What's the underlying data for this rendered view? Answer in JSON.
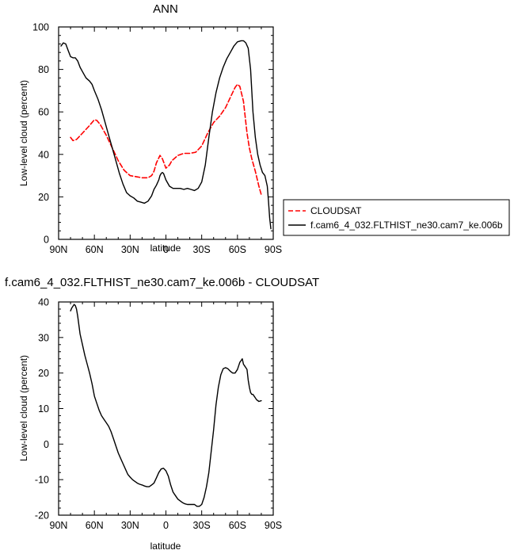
{
  "chart_data": [
    {
      "type": "line",
      "title": "ANN",
      "xlabel": "latitude",
      "ylabel": "Low-level cloud (percent)",
      "xlim": [
        90,
        -90
      ],
      "ylim": [
        0,
        100
      ],
      "x_ticks": [
        90,
        60,
        30,
        0,
        -30,
        -60,
        -90
      ],
      "x_tick_labels": [
        "90N",
        "60N",
        "30N",
        "0",
        "30S",
        "60S",
        "90S"
      ],
      "y_ticks": [
        0,
        20,
        40,
        60,
        80,
        100
      ],
      "y_tick_labels": [
        "0",
        "20",
        "40",
        "60",
        "80",
        "100"
      ],
      "legend_position": "right, outside plot",
      "series": [
        {
          "name": "CLOUDSAT",
          "color": "#ff0000",
          "dash": "dashed",
          "x": [
            80,
            78,
            75,
            70,
            65,
            60,
            58,
            55,
            50,
            45,
            40,
            35,
            30,
            25,
            20,
            15,
            12,
            10,
            8,
            5,
            3,
            0,
            -3,
            -5,
            -10,
            -15,
            -20,
            -25,
            -30,
            -35,
            -40,
            -45,
            -50,
            -55,
            -58,
            -60,
            -62,
            -65,
            -68,
            -70,
            -72,
            -75,
            -78,
            -80
          ],
          "y": [
            48,
            46.5,
            47,
            50,
            53,
            56.3,
            56,
            54,
            49,
            43,
            37,
            32.5,
            30,
            29.5,
            29,
            29,
            30,
            32,
            36,
            39.5,
            38,
            33.5,
            35,
            37,
            39.5,
            40.5,
            40.5,
            41,
            44,
            50,
            55,
            58,
            62,
            68,
            71.5,
            73,
            72,
            65,
            50,
            43,
            38,
            32,
            25,
            21
          ]
        },
        {
          "name": "f.cam6_4_032.FLTHIST_ne30.cam7_ke.006b",
          "color": "#000000",
          "dash": "solid",
          "x": [
            88,
            86,
            84,
            82,
            80,
            78,
            76,
            74,
            72,
            70,
            67,
            64,
            62,
            60,
            57,
            54,
            51,
            48,
            45,
            42,
            39,
            36,
            33,
            30,
            27,
            24,
            21,
            18,
            15,
            12,
            10,
            8,
            6,
            5,
            4,
            3,
            2,
            0,
            -3,
            -6,
            -9,
            -12,
            -15,
            -18,
            -21,
            -24,
            -27,
            -30,
            -33,
            -36,
            -39,
            -42,
            -45,
            -48,
            -51,
            -54,
            -57,
            -60,
            -63,
            -65,
            -67,
            -69,
            -71,
            -73,
            -75,
            -77,
            -79,
            -81,
            -83,
            -85,
            -86,
            -87,
            -88
          ],
          "y": [
            91,
            92.5,
            92,
            89,
            86,
            85.5,
            85.5,
            84,
            81,
            79,
            76,
            74.5,
            73,
            70,
            66,
            61,
            55,
            49,
            43,
            37,
            31,
            26,
            22,
            20.5,
            19.5,
            18,
            17.5,
            17,
            18,
            20.5,
            23.5,
            25.5,
            28,
            30,
            31,
            31.5,
            31,
            28,
            25,
            24,
            24,
            24,
            23.5,
            24,
            23.5,
            23,
            24,
            27,
            35,
            48,
            60,
            69,
            76,
            81,
            85,
            88,
            91,
            93,
            93.5,
            93.5,
            92.5,
            90,
            80,
            60,
            48,
            40,
            35,
            31.5,
            30,
            25,
            18,
            10,
            5
          ]
        }
      ]
    },
    {
      "type": "line",
      "title": "f.cam6_4_032.FLTHIST_ne30.cam7_ke.006b - CLOUDSAT",
      "xlabel": "latitude",
      "ylabel": "Low-level cloud (percent)",
      "xlim": [
        90,
        -90
      ],
      "ylim": [
        -20,
        40
      ],
      "x_ticks": [
        90,
        60,
        30,
        0,
        -30,
        -60,
        -90
      ],
      "x_tick_labels": [
        "90N",
        "60N",
        "30N",
        "0",
        "30S",
        "60S",
        "90S"
      ],
      "y_ticks": [
        -20,
        -10,
        0,
        10,
        20,
        30,
        40
      ],
      "y_tick_labels": [
        "-20",
        "-10",
        "0",
        "10",
        "20",
        "30",
        "40"
      ],
      "series": [
        {
          "color": "#000000",
          "dash": "solid",
          "x": [
            80,
            79,
            78,
            77,
            76,
            75,
            74,
            73,
            72,
            70,
            68,
            66,
            64,
            62,
            60,
            58,
            56,
            54,
            52,
            50,
            48,
            46,
            44,
            42,
            40,
            38,
            36,
            34,
            32,
            30,
            28,
            26,
            24,
            22,
            20,
            18,
            16,
            14,
            12,
            10,
            8,
            6,
            4,
            2,
            0,
            -2,
            -4,
            -6,
            -8,
            -10,
            -12,
            -14,
            -16,
            -18,
            -20,
            -22,
            -24,
            -26,
            -28,
            -30,
            -32,
            -34,
            -36,
            -38,
            -40,
            -42,
            -44,
            -46,
            -48,
            -50,
            -52,
            -54,
            -56,
            -58,
            -60,
            -61,
            -62,
            -63,
            -64,
            -65,
            -66,
            -67,
            -68,
            -69,
            -70,
            -71,
            -72,
            -73,
            -74,
            -75,
            -76,
            -78,
            -80
          ],
          "y": [
            37.5,
            38.3,
            38.8,
            39.3,
            39,
            38,
            36,
            33.5,
            31,
            28,
            25,
            22.5,
            20,
            17,
            13.5,
            11.5,
            9.5,
            8,
            7,
            6,
            5,
            3.5,
            1.5,
            -0.5,
            -2.5,
            -4,
            -5.5,
            -7,
            -8.5,
            -9.3,
            -10,
            -10.5,
            -11,
            -11.3,
            -11.5,
            -11.8,
            -12,
            -12,
            -11.5,
            -11,
            -9.5,
            -8,
            -7,
            -6.8,
            -7.5,
            -9,
            -11.5,
            -13.5,
            -14.5,
            -15.5,
            -16,
            -16.5,
            -16.8,
            -17,
            -17,
            -17,
            -17,
            -17.5,
            -17.5,
            -17,
            -15,
            -12,
            -8,
            -2,
            4,
            11,
            16,
            19.5,
            21.2,
            21.5,
            21.2,
            20.5,
            20,
            20,
            21,
            22,
            23,
            23.5,
            24,
            22.5,
            22,
            21.5,
            21,
            18,
            16,
            14.5,
            14,
            14,
            13.5,
            13,
            12.5,
            12,
            12.2
          ]
        }
      ]
    }
  ]
}
